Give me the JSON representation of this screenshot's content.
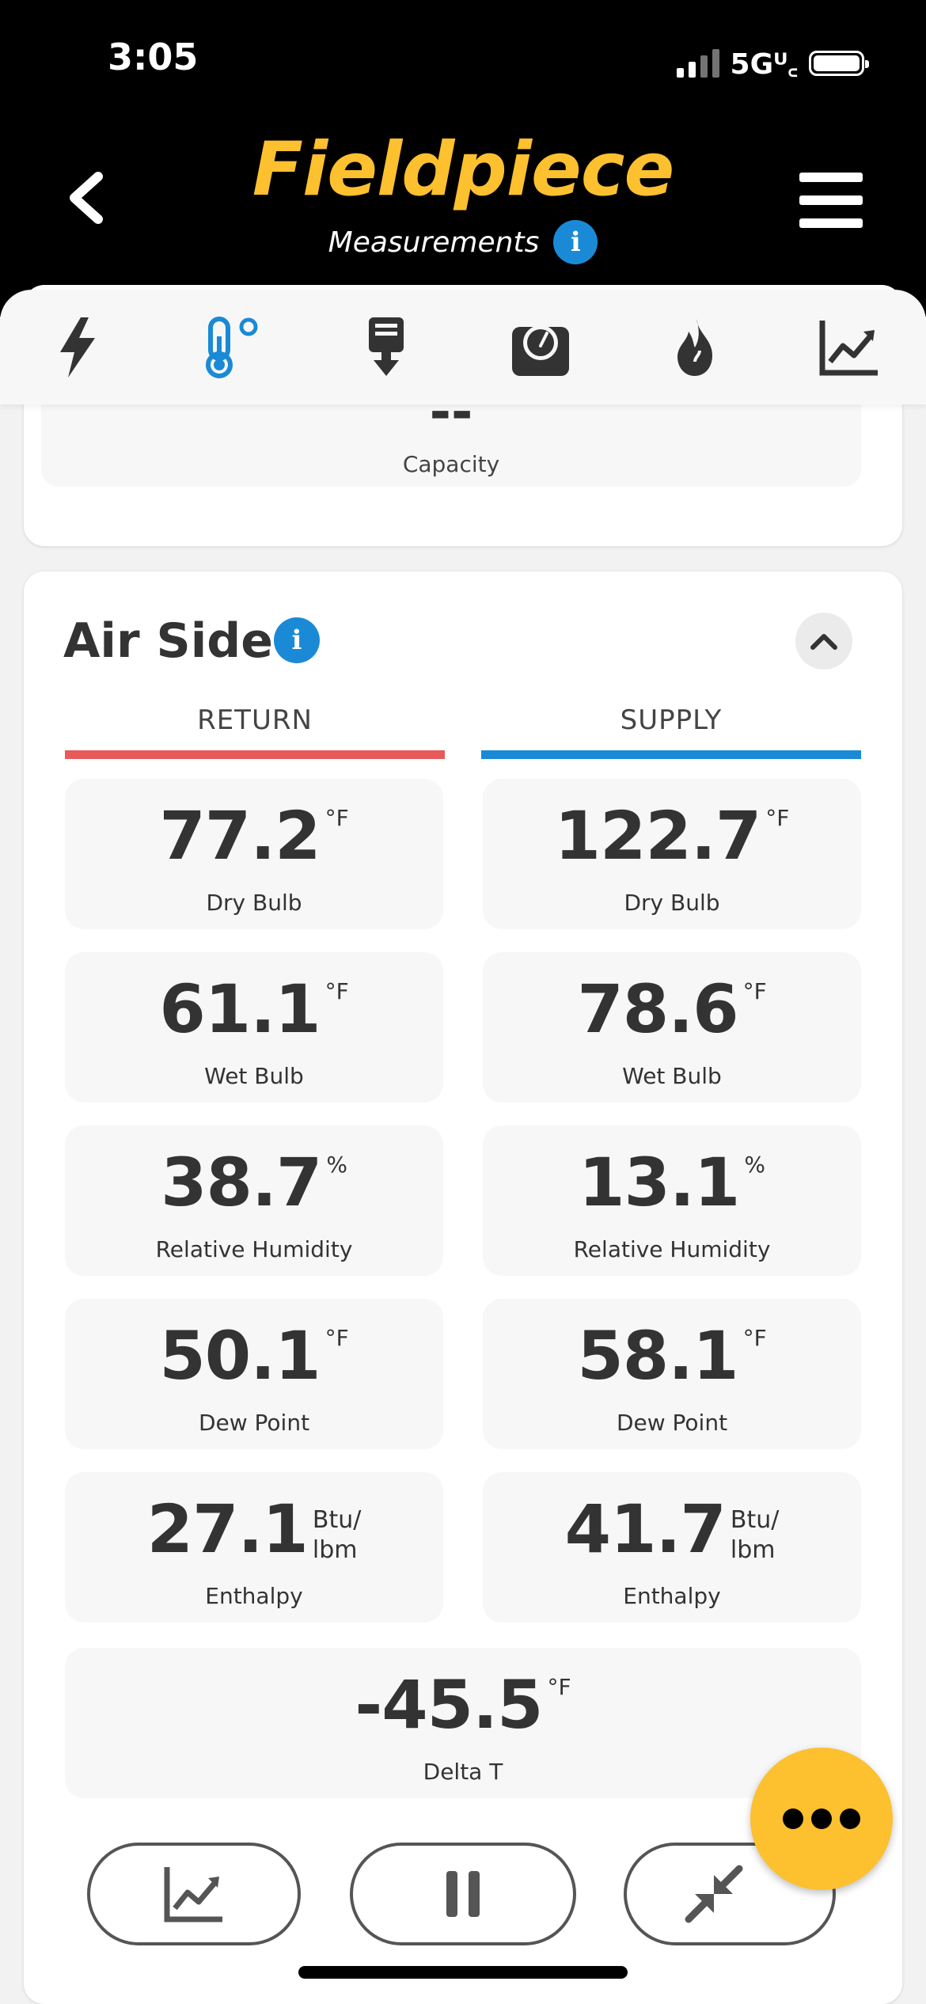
{
  "status_bar": {
    "time": "3:05",
    "network": "5Gᵁ꜀"
  },
  "header": {
    "brand": "Fieldpiece",
    "subtitle": "Measurements"
  },
  "tabs": [
    "bolt-icon",
    "thermometer-icon",
    "download-icon",
    "gauge-icon",
    "flame-icon",
    "chart-icon"
  ],
  "capacity": {
    "value": "--",
    "label": "Capacity"
  },
  "air_side": {
    "title": "Air Side",
    "return_label": "RETURN",
    "supply_label": "SUPPLY",
    "return": [
      {
        "value": "77.2",
        "unit": "°F",
        "label": "Dry Bulb"
      },
      {
        "value": "61.1",
        "unit": "°F",
        "label": "Wet Bulb"
      },
      {
        "value": "38.7",
        "unit": "%",
        "label": "Relative Humidity"
      },
      {
        "value": "50.1",
        "unit": "°F",
        "label": "Dew Point"
      },
      {
        "value": "27.1",
        "unit1": "Btu/",
        "unit2": "lbm",
        "label": "Enthalpy"
      }
    ],
    "supply": [
      {
        "value": "122.7",
        "unit": "°F",
        "label": "Dry Bulb"
      },
      {
        "value": "78.6",
        "unit": "°F",
        "label": "Wet Bulb"
      },
      {
        "value": "13.1",
        "unit": "%",
        "label": "Relative Humidity"
      },
      {
        "value": "58.1",
        "unit": "°F",
        "label": "Dew Point"
      },
      {
        "value": "41.7",
        "unit1": "Btu/",
        "unit2": "lbm",
        "label": "Enthalpy"
      }
    ],
    "delta_t": {
      "value": "-45.5",
      "unit": "°F",
      "label": "Delta T"
    }
  },
  "colors": {
    "brand": "#fdc02f",
    "return_bar": "#e85a5a",
    "supply_bar": "#1a8ad6",
    "info": "#1a8ad6"
  }
}
